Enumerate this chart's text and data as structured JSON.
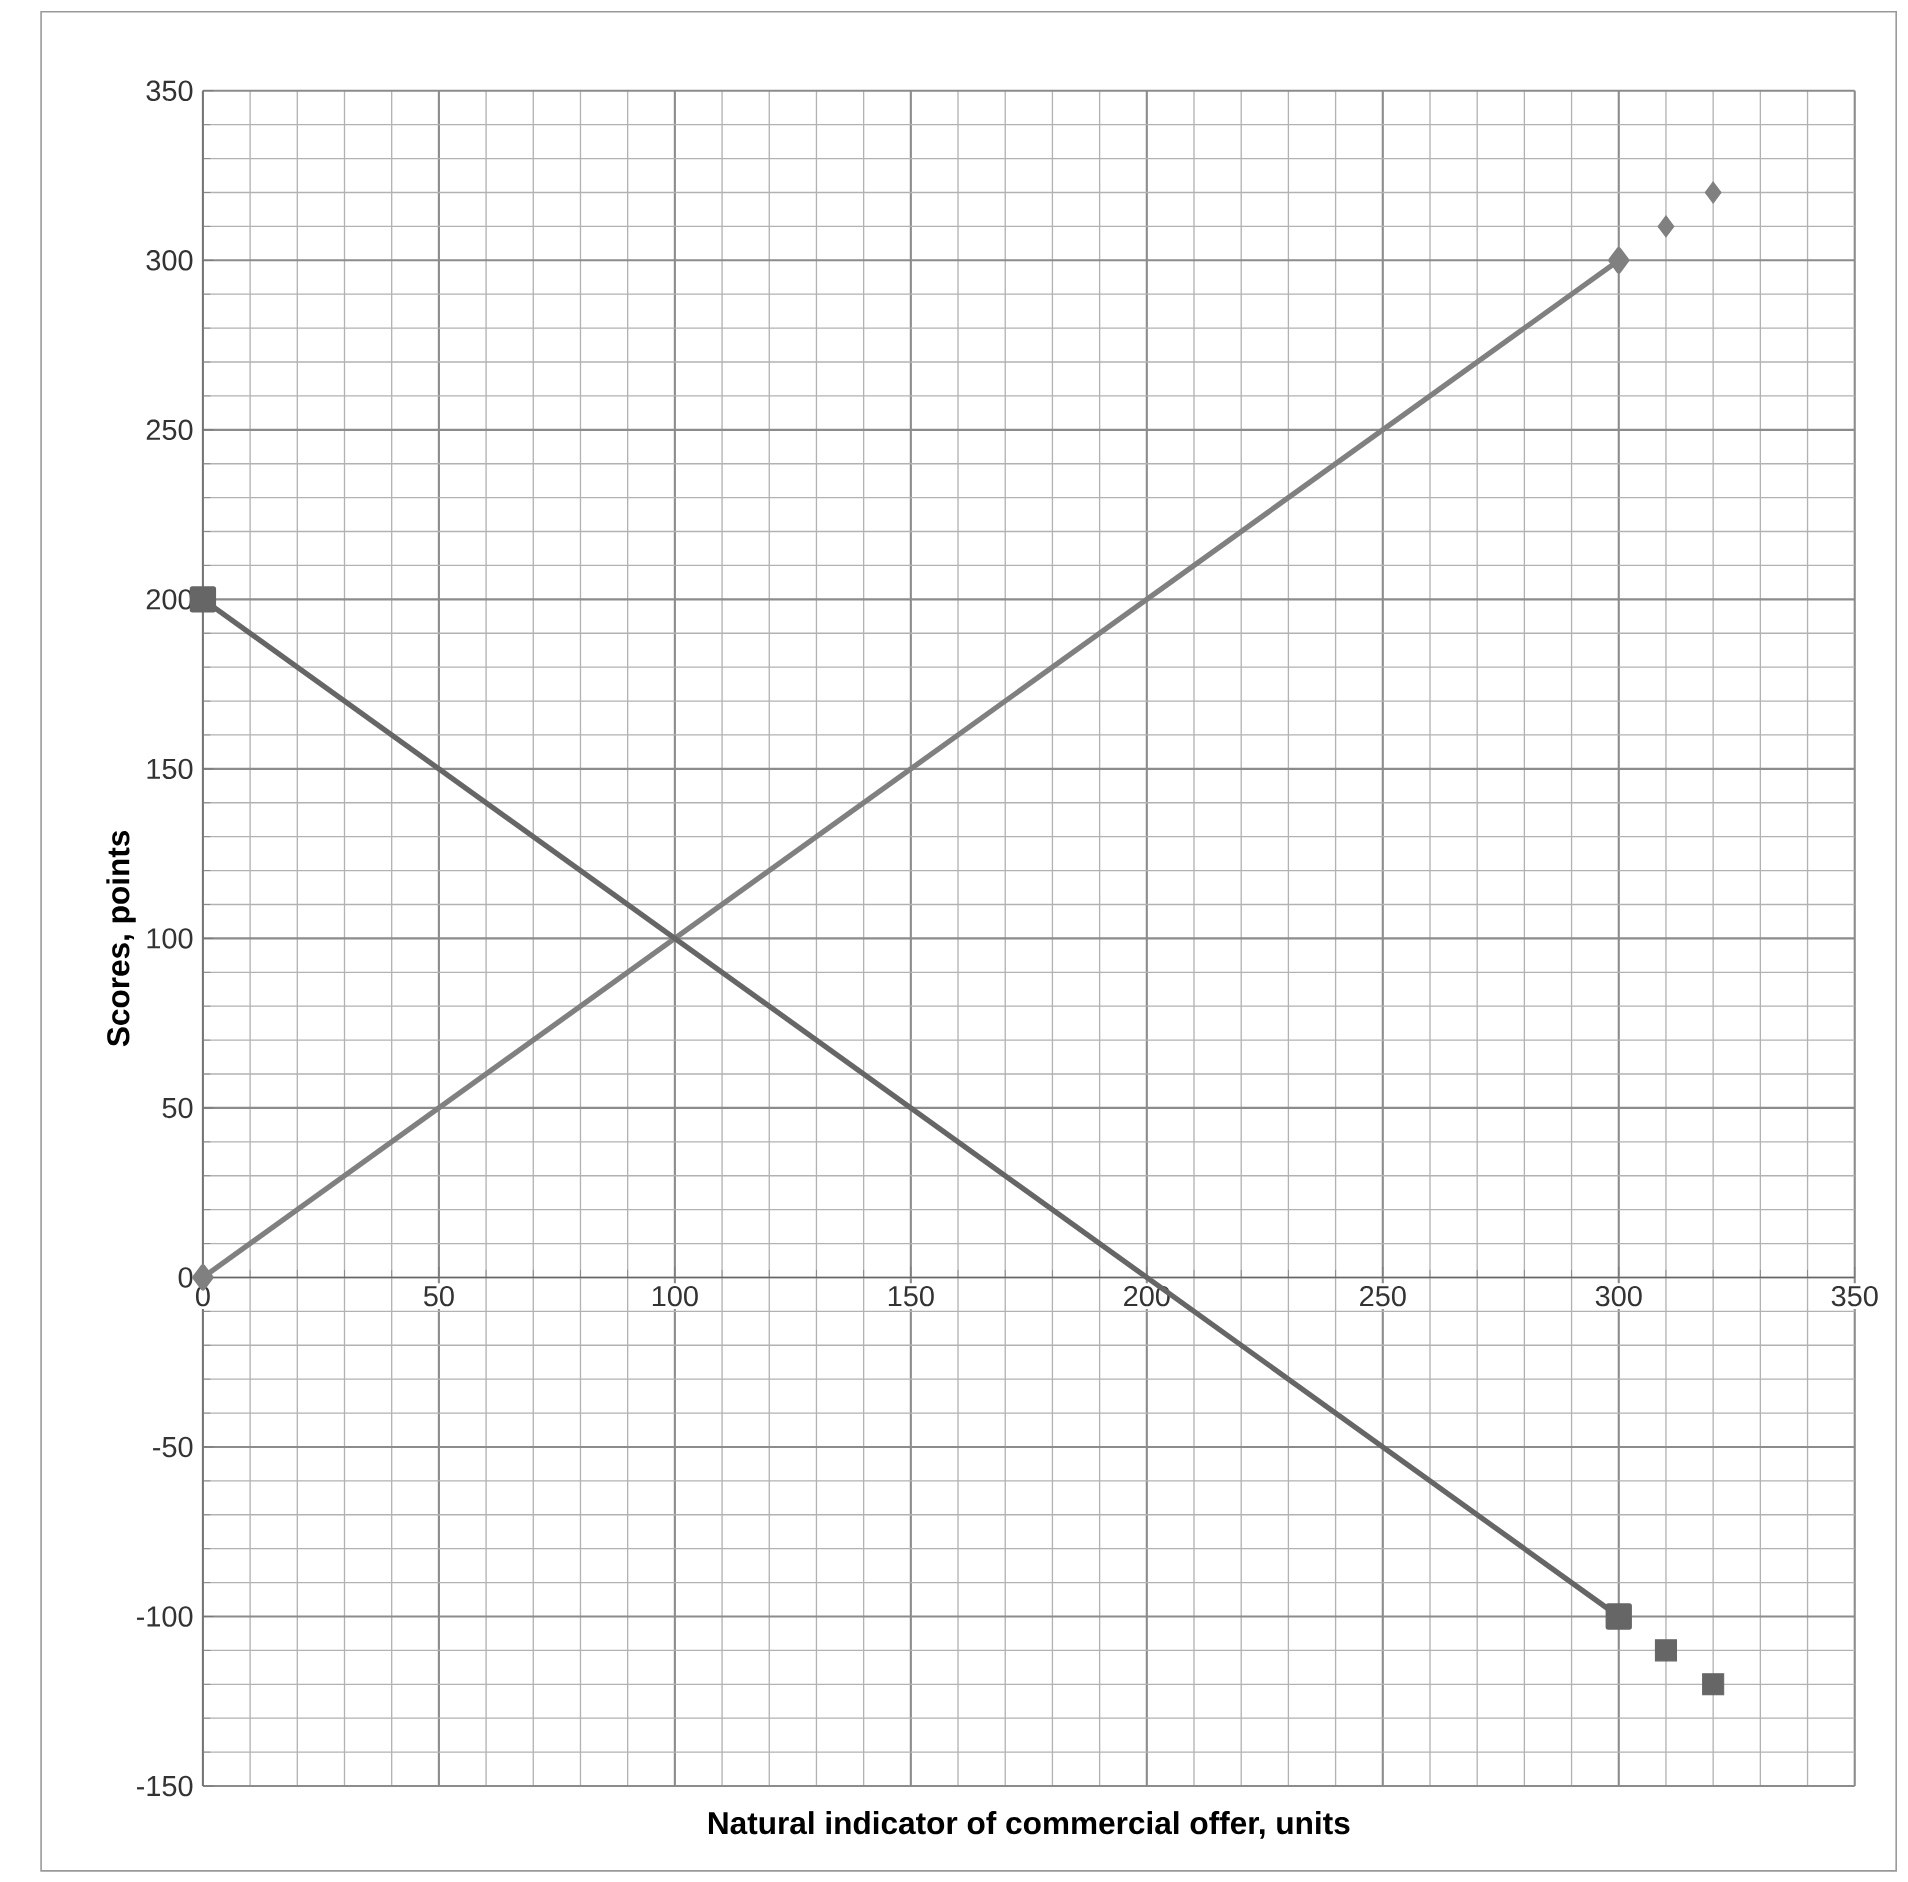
{
  "chart_data": {
    "type": "line",
    "xlabel": "Natural indicator of commercial offer, units",
    "ylabel": "Scores, points",
    "xlim": [
      0,
      350
    ],
    "ylim": [
      -150,
      350
    ],
    "xticks": [
      0,
      50,
      100,
      150,
      200,
      250,
      300,
      350
    ],
    "yticks": [
      -150,
      -100,
      -50,
      0,
      50,
      100,
      150,
      200,
      250,
      300,
      350
    ],
    "grid": true,
    "line_style": "solid",
    "series": [
      {
        "type": "line",
        "color": "#808080",
        "marker": "diamond",
        "x": [
          0,
          300
        ],
        "values": [
          0,
          300
        ]
      },
      {
        "type": "scatter",
        "color": "#808080",
        "marker": "diamond",
        "x": [
          310,
          320
        ],
        "values": [
          310,
          320
        ]
      },
      {
        "type": "line",
        "color": "#666666",
        "marker": "square",
        "x": [
          0,
          300
        ],
        "values": [
          200,
          -100
        ]
      },
      {
        "type": "scatter",
        "color": "#666666",
        "marker": "square",
        "x": [
          310,
          320
        ],
        "values": [
          -110,
          -120
        ]
      }
    ]
  }
}
